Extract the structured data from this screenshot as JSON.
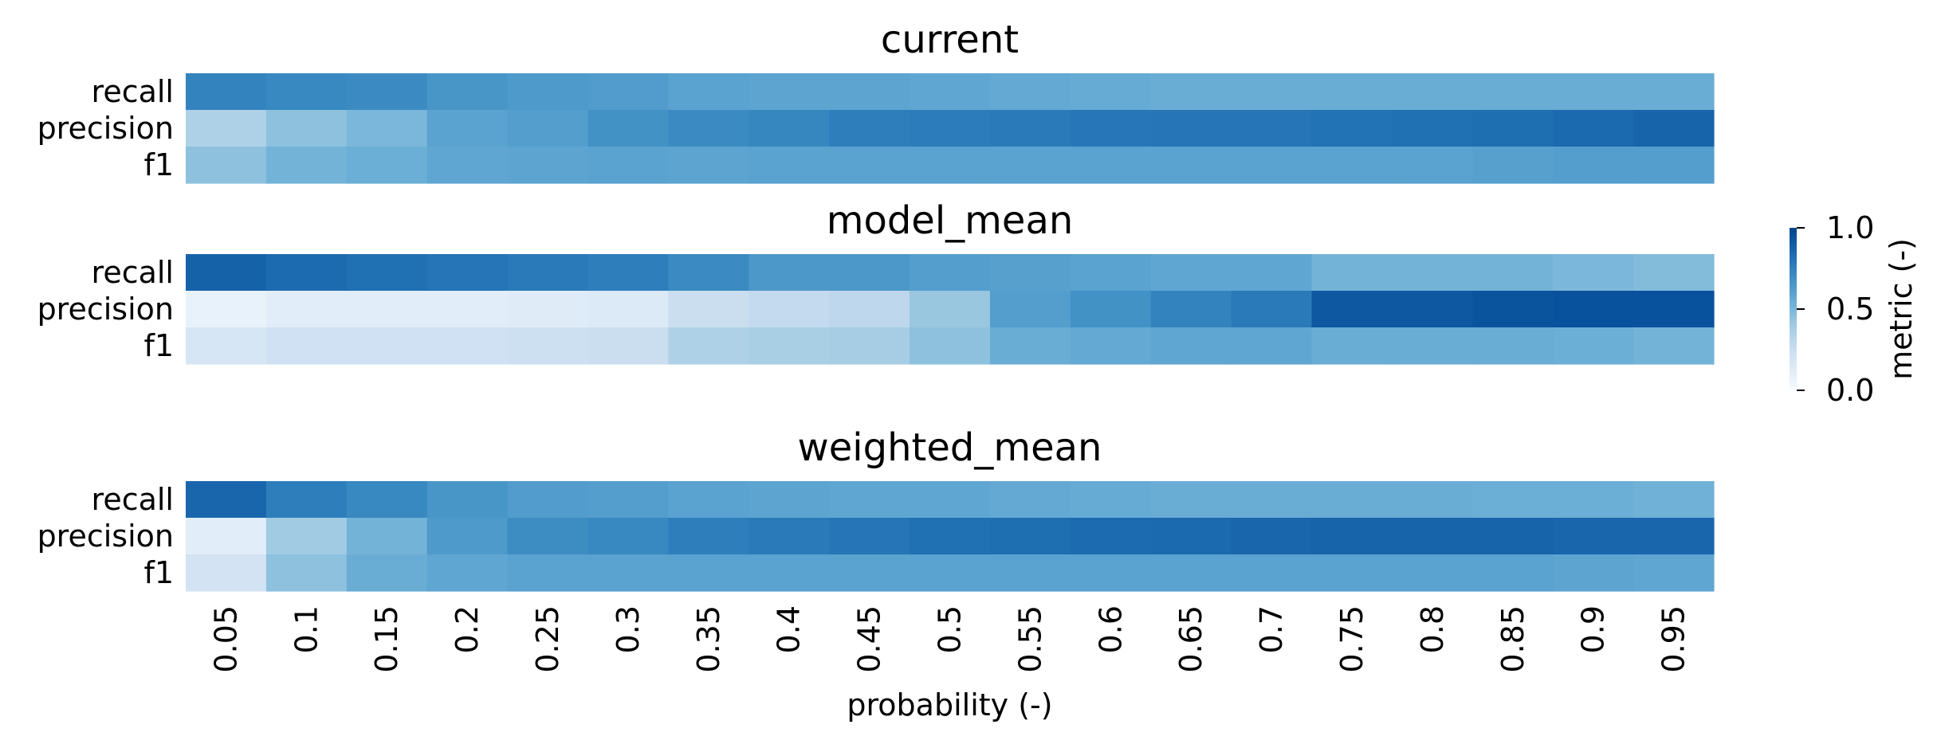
{
  "chart_data": {
    "type": "heatmap",
    "xlabel": "probability (-)",
    "x_categories": [
      "0.05",
      "0.1",
      "0.15",
      "0.2",
      "0.25",
      "0.3",
      "0.35",
      "0.4",
      "0.45",
      "0.5",
      "0.55",
      "0.6",
      "0.65",
      "0.7",
      "0.75",
      "0.8",
      "0.85",
      "0.9",
      "0.95"
    ],
    "row_labels": [
      "recall",
      "precision",
      "f1"
    ],
    "colormap": {
      "name": "Blues",
      "low": "#f7fbff",
      "high": "#08306b"
    },
    "colorbar": {
      "label": "metric (-)",
      "range": [
        0.0,
        1.0
      ],
      "ticks": [
        "0.0",
        "0.5",
        "1.0"
      ]
    },
    "panels": [
      {
        "title": "current",
        "rows": [
          {
            "label": "recall",
            "values": [
              0.74,
              0.72,
              0.71,
              0.66,
              0.64,
              0.63,
              0.6,
              0.59,
              0.59,
              0.58,
              0.57,
              0.56,
              0.55,
              0.55,
              0.55,
              0.55,
              0.55,
              0.55,
              0.55
            ]
          },
          {
            "label": "precision",
            "values": [
              0.35,
              0.45,
              0.5,
              0.6,
              0.62,
              0.68,
              0.71,
              0.73,
              0.76,
              0.77,
              0.78,
              0.79,
              0.8,
              0.8,
              0.81,
              0.82,
              0.83,
              0.85,
              0.87
            ]
          },
          {
            "label": "f1",
            "values": [
              0.45,
              0.52,
              0.54,
              0.58,
              0.59,
              0.6,
              0.59,
              0.6,
              0.6,
              0.6,
              0.6,
              0.6,
              0.6,
              0.6,
              0.6,
              0.6,
              0.61,
              0.62,
              0.62
            ]
          }
        ]
      },
      {
        "title": "model_mean",
        "rows": [
          {
            "label": "recall",
            "values": [
              0.88,
              0.84,
              0.82,
              0.8,
              0.78,
              0.76,
              0.71,
              0.65,
              0.65,
              0.62,
              0.61,
              0.6,
              0.58,
              0.58,
              0.52,
              0.52,
              0.52,
              0.5,
              0.48
            ]
          },
          {
            "label": "precision",
            "values": [
              0.08,
              0.12,
              0.12,
              0.12,
              0.13,
              0.15,
              0.25,
              0.28,
              0.3,
              0.42,
              0.62,
              0.68,
              0.74,
              0.78,
              0.92,
              0.92,
              0.94,
              0.95,
              0.95
            ]
          },
          {
            "label": "f1",
            "values": [
              0.18,
              0.22,
              0.22,
              0.22,
              0.23,
              0.25,
              0.35,
              0.37,
              0.38,
              0.45,
              0.55,
              0.57,
              0.58,
              0.58,
              0.55,
              0.55,
              0.55,
              0.54,
              0.52
            ]
          }
        ]
      },
      {
        "title": "weighted_mean",
        "rows": [
          {
            "label": "recall",
            "values": [
              0.86,
              0.76,
              0.72,
              0.66,
              0.63,
              0.62,
              0.6,
              0.59,
              0.58,
              0.58,
              0.57,
              0.56,
              0.55,
              0.55,
              0.55,
              0.55,
              0.54,
              0.54,
              0.53
            ]
          },
          {
            "label": "precision",
            "values": [
              0.12,
              0.4,
              0.52,
              0.64,
              0.7,
              0.72,
              0.76,
              0.78,
              0.8,
              0.82,
              0.83,
              0.84,
              0.85,
              0.86,
              0.87,
              0.87,
              0.87,
              0.86,
              0.86
            ]
          },
          {
            "label": "f1",
            "values": [
              0.2,
              0.45,
              0.55,
              0.58,
              0.6,
              0.6,
              0.6,
              0.6,
              0.6,
              0.6,
              0.6,
              0.6,
              0.6,
              0.6,
              0.6,
              0.6,
              0.6,
              0.59,
              0.58
            ]
          }
        ]
      }
    ]
  }
}
